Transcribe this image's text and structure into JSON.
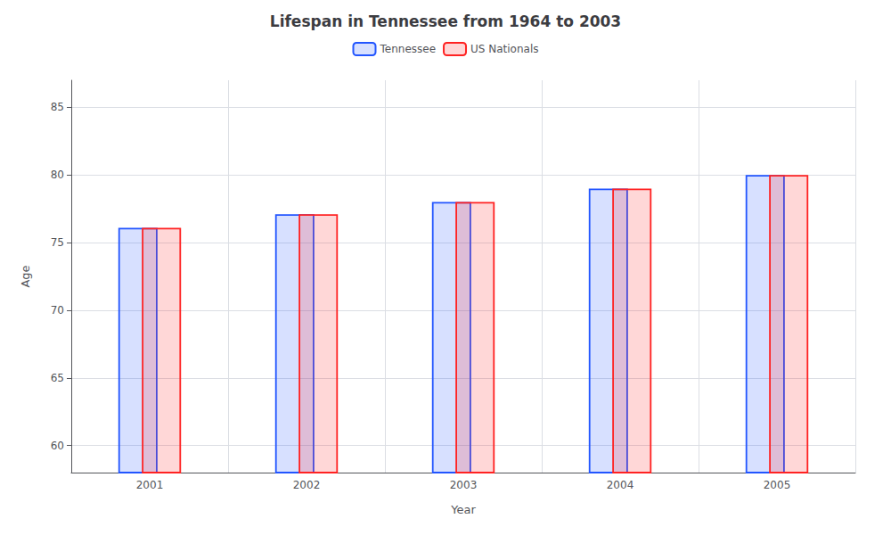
{
  "chart_data": {
    "type": "bar",
    "title": "Lifespan in Tennessee from 1964 to 2003",
    "xlabel": "Year",
    "ylabel": "Age",
    "categories": [
      "2001",
      "2002",
      "2003",
      "2004",
      "2005"
    ],
    "series": [
      {
        "name": "Tennessee",
        "color": "#2255ff",
        "values": [
          76.1,
          77.1,
          78.0,
          79.0,
          80.0
        ]
      },
      {
        "name": "US Nationals",
        "color": "#ff2222",
        "values": [
          76.1,
          77.1,
          78.0,
          79.0,
          80.0
        ]
      }
    ],
    "ylim": [
      58,
      87
    ],
    "yticks": [
      60,
      65,
      70,
      75,
      80,
      85
    ],
    "grid": true,
    "legend": "top"
  }
}
